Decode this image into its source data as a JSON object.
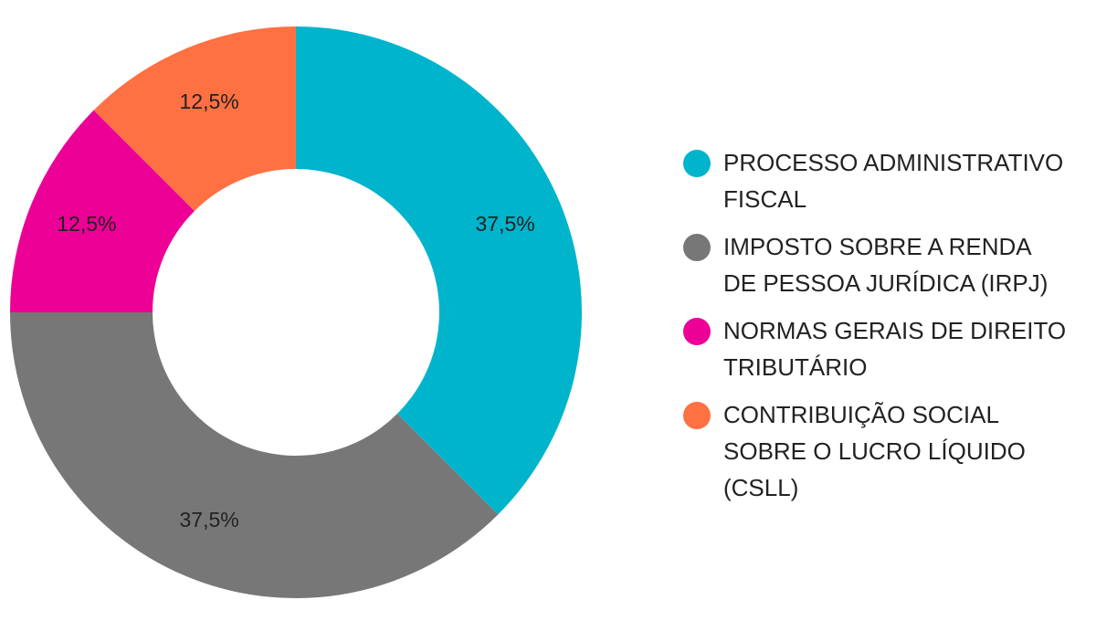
{
  "chart_data": {
    "type": "pie",
    "donut": true,
    "categories": [
      "PROCESSO ADMINISTRATIVO\nFISCAL",
      "IMPOSTO SOBRE A RENDA\nDE PESSOA JURÍDICA (IRPJ)",
      "NORMAS GERAIS DE DIREITO\nTRIBUTÁRIO",
      "CONTRIBUIÇÃO SOCIAL\nSOBRE O LUCRO LÍQUIDO\n(CSLL)"
    ],
    "values": [
      37.5,
      37.5,
      12.5,
      12.5
    ],
    "data_labels": [
      "37,5%",
      "37,5%",
      "12,5%",
      "12,5%"
    ],
    "colors": [
      "#00b4cc",
      "#777777",
      "#ec0096",
      "#ff7043"
    ],
    "legend_position": "right"
  }
}
